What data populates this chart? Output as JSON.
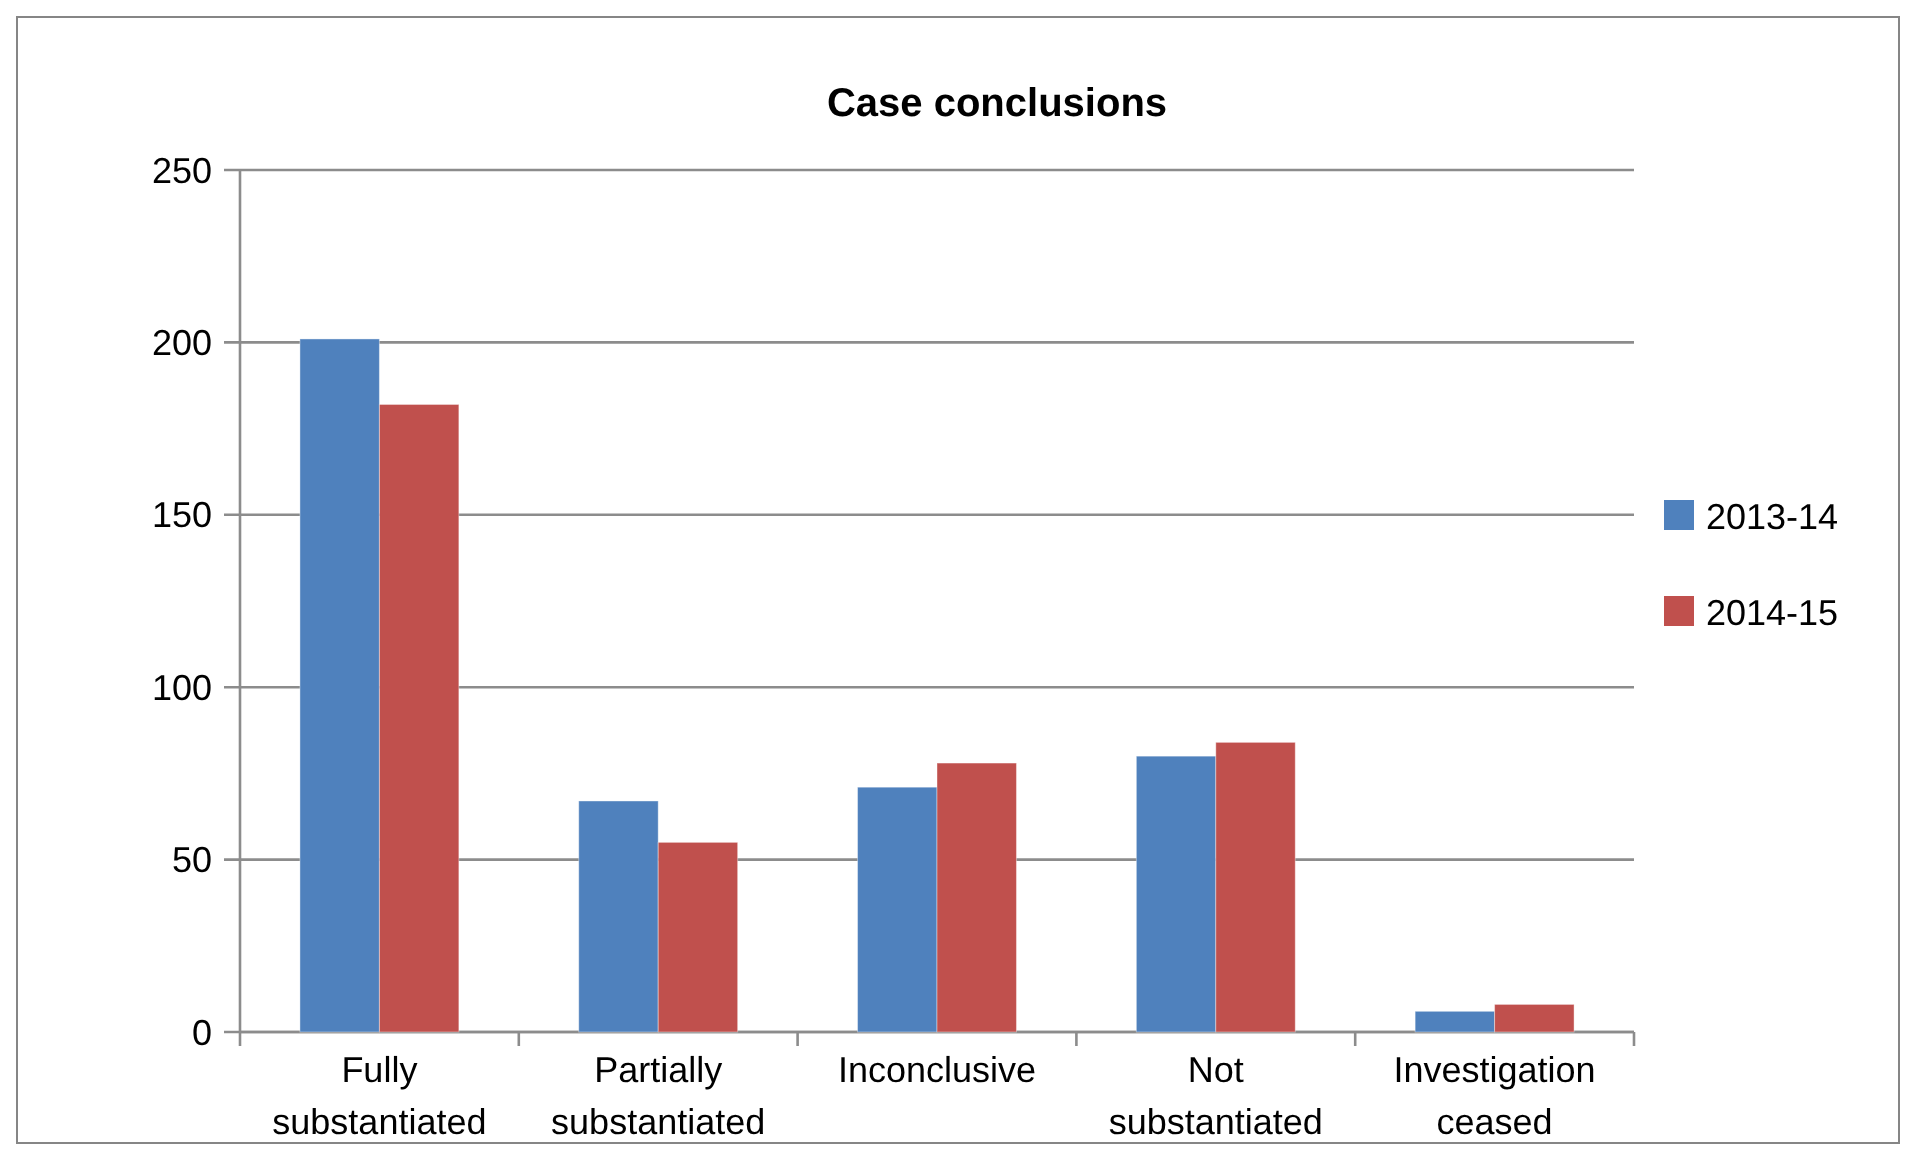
{
  "chart_data": {
    "type": "bar",
    "title": "Case conclusions",
    "categories": [
      "Fully substantiated",
      "Partially substantiated",
      "Inconclusive",
      "Not substantiated",
      "Investigation ceased"
    ],
    "series": [
      {
        "name": "2013-14",
        "color": "#4f81bd",
        "values": [
          201,
          67,
          71,
          80,
          6
        ]
      },
      {
        "name": "2014-15",
        "color": "#c0504d",
        "values": [
          182,
          55,
          78,
          84,
          8
        ]
      }
    ],
    "ylim": [
      0,
      250
    ],
    "yticks": [
      0,
      50,
      100,
      150,
      200,
      250
    ],
    "grid": "y",
    "legend": "right"
  }
}
